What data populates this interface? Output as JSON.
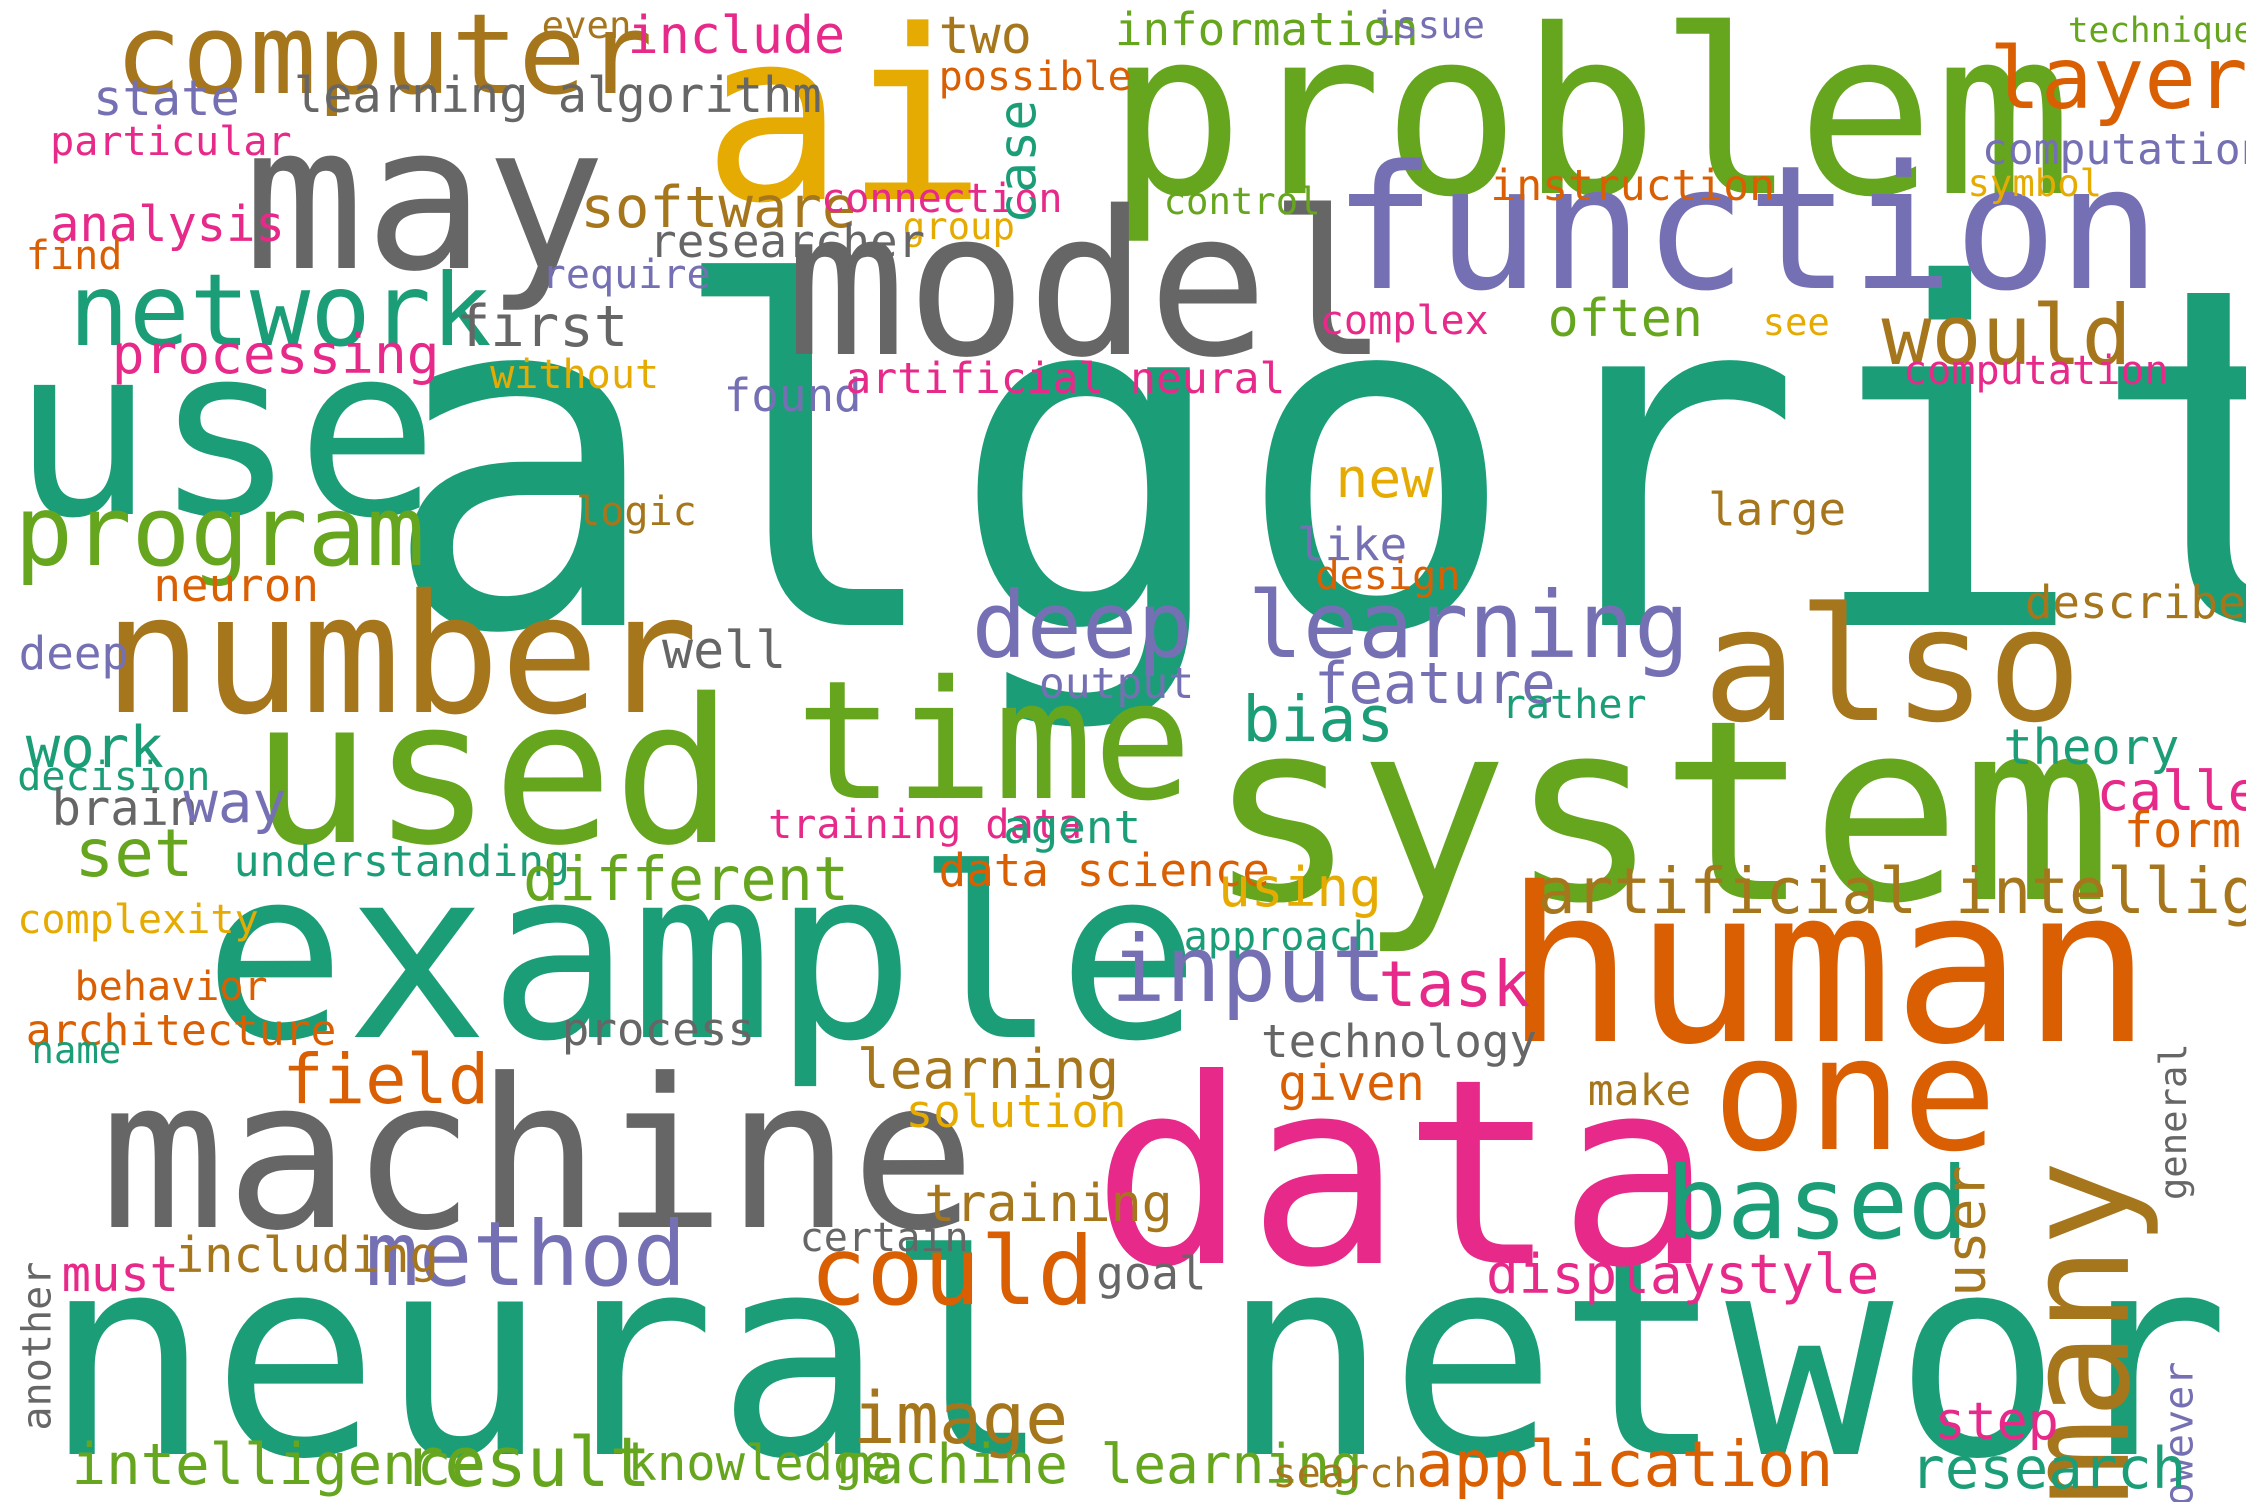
{
  "colors": {
    "teal": "#1b9e77",
    "orange": "#d95f02",
    "purple": "#7570b3",
    "magenta": "#e7298a",
    "green": "#66a61e",
    "gold": "#e6ab02",
    "brown": "#a6761d",
    "gray": "#666666"
  },
  "words": [
    {
      "text": "algorithm",
      "color": "teal"
    },
    {
      "text": "neural network",
      "color": "teal"
    },
    {
      "text": "system",
      "color": "green"
    },
    {
      "text": "data",
      "color": "magenta"
    },
    {
      "text": "example",
      "color": "teal"
    },
    {
      "text": "problem",
      "color": "green"
    },
    {
      "text": "use",
      "color": "teal"
    },
    {
      "text": "ai",
      "color": "gold"
    },
    {
      "text": "machine",
      "color": "gray"
    },
    {
      "text": "human",
      "color": "orange"
    },
    {
      "text": "model",
      "color": "gray"
    },
    {
      "text": "used",
      "color": "green"
    },
    {
      "text": "may",
      "color": "gray"
    },
    {
      "text": "function",
      "color": "purple"
    },
    {
      "text": "number",
      "color": "brown"
    },
    {
      "text": "time",
      "color": "green"
    },
    {
      "text": "also",
      "color": "brown"
    },
    {
      "text": "one",
      "color": "orange"
    },
    {
      "text": "many",
      "color": "brown"
    },
    {
      "text": "computer",
      "color": "brown"
    },
    {
      "text": "network",
      "color": "teal"
    },
    {
      "text": "program",
      "color": "green"
    },
    {
      "text": "deep learning",
      "color": "purple"
    },
    {
      "text": "input",
      "color": "purple"
    },
    {
      "text": "could",
      "color": "orange"
    },
    {
      "text": "method",
      "color": "purple"
    },
    {
      "text": "based",
      "color": "teal"
    },
    {
      "text": "layer",
      "color": "orange"
    },
    {
      "text": "would",
      "color": "brown"
    },
    {
      "text": "artificial intelligence",
      "color": "brown"
    },
    {
      "text": "software",
      "color": "brown"
    },
    {
      "text": "first",
      "color": "gray"
    },
    {
      "text": "learning algorithm",
      "color": "gray"
    },
    {
      "text": "include",
      "color": "magenta"
    },
    {
      "text": "two",
      "color": "brown"
    },
    {
      "text": "information",
      "color": "green"
    },
    {
      "text": "technique",
      "color": "green"
    },
    {
      "text": "even",
      "color": "brown"
    },
    {
      "text": "issue",
      "color": "purple"
    },
    {
      "text": "possible",
      "color": "orange"
    },
    {
      "text": "state",
      "color": "purple"
    },
    {
      "text": "particular",
      "color": "magenta"
    },
    {
      "text": "computational",
      "color": "purple"
    },
    {
      "text": "symbol",
      "color": "gold"
    },
    {
      "text": "instruction",
      "color": "orange"
    },
    {
      "text": "connection",
      "color": "magenta"
    },
    {
      "text": "control",
      "color": "green"
    },
    {
      "text": "case",
      "color": "teal"
    },
    {
      "text": "analysis",
      "color": "magenta"
    },
    {
      "text": "group",
      "color": "gold"
    },
    {
      "text": "researcher",
      "color": "gray"
    },
    {
      "text": "find",
      "color": "orange"
    },
    {
      "text": "require",
      "color": "purple"
    },
    {
      "text": "complex",
      "color": "magenta"
    },
    {
      "text": "often",
      "color": "green"
    },
    {
      "text": "see",
      "color": "gold"
    },
    {
      "text": "processing",
      "color": "magenta"
    },
    {
      "text": "without",
      "color": "gold"
    },
    {
      "text": "found",
      "color": "purple"
    },
    {
      "text": "artificial neural",
      "color": "magenta"
    },
    {
      "text": "computation",
      "color": "magenta"
    },
    {
      "text": "new",
      "color": "gold"
    },
    {
      "text": "logic",
      "color": "brown"
    },
    {
      "text": "large",
      "color": "brown"
    },
    {
      "text": "like",
      "color": "purple"
    },
    {
      "text": "neuron",
      "color": "orange"
    },
    {
      "text": "design",
      "color": "orange"
    },
    {
      "text": "described",
      "color": "brown"
    },
    {
      "text": "deep",
      "color": "purple"
    },
    {
      "text": "well",
      "color": "gray"
    },
    {
      "text": "output",
      "color": "purple"
    },
    {
      "text": "feature",
      "color": "purple"
    },
    {
      "text": "rather",
      "color": "teal"
    },
    {
      "text": "bias",
      "color": "teal"
    },
    {
      "text": "work",
      "color": "teal"
    },
    {
      "text": "decision",
      "color": "teal"
    },
    {
      "text": "theory",
      "color": "teal"
    },
    {
      "text": "brain",
      "color": "gray"
    },
    {
      "text": "way",
      "color": "purple"
    },
    {
      "text": "called",
      "color": "magenta"
    },
    {
      "text": "training data",
      "color": "magenta"
    },
    {
      "text": "agent",
      "color": "teal"
    },
    {
      "text": "form",
      "color": "orange"
    },
    {
      "text": "set",
      "color": "green"
    },
    {
      "text": "understanding",
      "color": "teal"
    },
    {
      "text": "different",
      "color": "green"
    },
    {
      "text": "data science",
      "color": "orange"
    },
    {
      "text": "using",
      "color": "gold"
    },
    {
      "text": "complexity",
      "color": "gold"
    },
    {
      "text": "approach",
      "color": "teal"
    },
    {
      "text": "task",
      "color": "magenta"
    },
    {
      "text": "behavior",
      "color": "orange"
    },
    {
      "text": "architecture",
      "color": "orange"
    },
    {
      "text": "name",
      "color": "teal"
    },
    {
      "text": "process",
      "color": "gray"
    },
    {
      "text": "technology",
      "color": "gray"
    },
    {
      "text": "general",
      "color": "gray"
    },
    {
      "text": "field",
      "color": "orange"
    },
    {
      "text": "learning",
      "color": "brown"
    },
    {
      "text": "given",
      "color": "orange"
    },
    {
      "text": "make",
      "color": "brown"
    },
    {
      "text": "solution",
      "color": "gold"
    },
    {
      "text": "training",
      "color": "brown"
    },
    {
      "text": "certain",
      "color": "gray"
    },
    {
      "text": "user",
      "color": "brown"
    },
    {
      "text": "including",
      "color": "brown"
    },
    {
      "text": "must",
      "color": "magenta"
    },
    {
      "text": "goal",
      "color": "gray"
    },
    {
      "text": "displaystyle",
      "color": "magenta"
    },
    {
      "text": "another",
      "color": "gray"
    },
    {
      "text": "image",
      "color": "brown"
    },
    {
      "text": "however",
      "color": "purple"
    },
    {
      "text": "step",
      "color": "magenta"
    },
    {
      "text": "intelligence",
      "color": "green"
    },
    {
      "text": "result",
      "color": "green"
    },
    {
      "text": "knowledge",
      "color": "green"
    },
    {
      "text": "machine learning",
      "color": "green"
    },
    {
      "text": "search",
      "color": "brown"
    },
    {
      "text": "application",
      "color": "orange"
    },
    {
      "text": "research",
      "color": "teal"
    }
  ]
}
